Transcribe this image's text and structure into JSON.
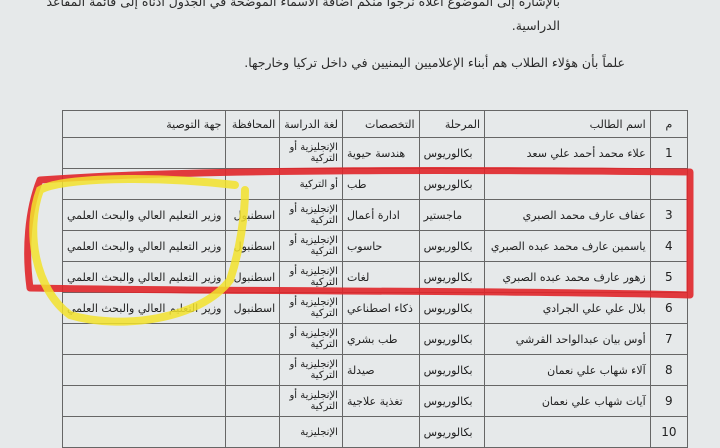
{
  "letter": {
    "line1": "بالإشارة إلى الموضوع أعلاه نرجوا منكم اضافة الأسماء الموضحة في الجدول أدناه إلى قائمة المقاعد",
    "line1b": "الدراسية.",
    "line2": "علماً بأن هؤلاء الطلاب هم أبناء الإعلاميين اليمنيين في داخل تركيا وخارجها."
  },
  "table": {
    "headers": [
      "م",
      "اسم الطالب",
      "المرحلة",
      "التخصصات",
      "لغة الدراسة",
      "المحافظة",
      "جهة التوصية"
    ],
    "rows": [
      {
        "n": "1",
        "name": "علاء محمد أحمد علي سعد",
        "stage": "بكالوريوس",
        "spec": "هندسة حيوية",
        "lang": "الإنجليزية أو التركية",
        "gov": "",
        "rec": ""
      },
      {
        "n": "",
        "name": "",
        "stage": "بكالوريوس",
        "spec": "طب",
        "lang": "أو التركية",
        "gov": "",
        "rec": ""
      },
      {
        "n": "3",
        "name": "عفاف عارف محمد الصبري",
        "stage": "ماجستير",
        "spec": "ادارة أعمال",
        "lang": "الإنجليزية أو التركية",
        "gov": "اسطنبول",
        "rec": "وزير التعليم العالي والبحث العلمي"
      },
      {
        "n": "4",
        "name": "ياسمين عارف محمد عبده الصبري",
        "stage": "بكالوريوس",
        "spec": "حاسوب",
        "lang": "الإنجليزية أو التركية",
        "gov": "اسطنبول",
        "rec": "وزير التعليم العالي والبحث العلمي"
      },
      {
        "n": "5",
        "name": "زهور عارف محمد عبده الصبري",
        "stage": "بكالوريوس",
        "spec": "لغات",
        "lang": "الإنجليزية أو التركية",
        "gov": "اسطنبول",
        "rec": "وزير التعليم العالي والبحث العلمي"
      },
      {
        "n": "6",
        "name": "بلال علي علي الجرادي",
        "stage": "بكالوريوس",
        "spec": "ذكاء اصطناعي",
        "lang": "الإنجليزية أو التركية",
        "gov": "اسطنبول",
        "rec": "وزير التعليم العالي والبحث العلمي"
      },
      {
        "n": "7",
        "name": "أوس بيان عبدالواحد القرشي",
        "stage": "بكالوريوس",
        "spec": "طب بشري",
        "lang": "الإنجليزية أو التركية",
        "gov": "",
        "rec": ""
      },
      {
        "n": "8",
        "name": "آلاء شهاب علي نعمان",
        "stage": "بكالوريوس",
        "spec": "صيدلة",
        "lang": "الإنجليزية أو التركية",
        "gov": "",
        "rec": ""
      },
      {
        "n": "9",
        "name": "آيات شهاب علي نعمان",
        "stage": "بكالوريوس",
        "spec": "تغذية علاجية",
        "lang": "الإنجليزية أو التركية",
        "gov": "",
        "rec": ""
      },
      {
        "n": "10",
        "name": "",
        "stage": "بكالوريوس",
        "spec": "",
        "lang": "الإنجليزية",
        "gov": "",
        "rec": ""
      }
    ]
  },
  "annotations": {
    "red_outline": "#e0262a",
    "yellow_outline": "#f2e22c"
  }
}
